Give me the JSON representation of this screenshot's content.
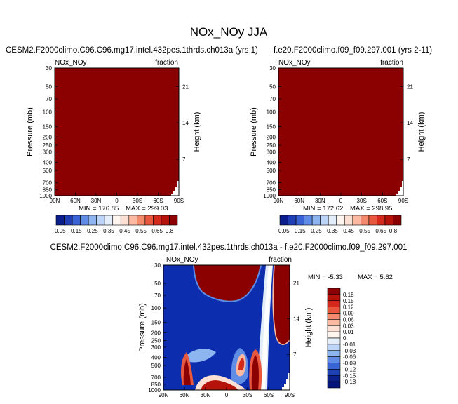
{
  "page_title": "NOx_NOy JJA",
  "chart_data": [
    {
      "type": "heatmap",
      "title": "CESM2.F2000climo.C96.C96.mg17.intel.432pes.1thrds.ch013a (yrs 1)",
      "left_label": "NOx_NOy",
      "right_label": "fraction",
      "ylabel": "Pressure (mb)",
      "ylabel_right": "Height (km)",
      "x_ticks": [
        "90N",
        "60N",
        "30N",
        "0",
        "30S",
        "60S",
        "90S"
      ],
      "pressure_ticks": [
        "30",
        "50",
        "70",
        "100",
        "150",
        "200",
        "250",
        "300",
        "400",
        "500",
        "700",
        "850",
        "1000"
      ],
      "height_ticks": [
        "21",
        "14",
        "7"
      ],
      "min_label": "MIN = 176.85",
      "max_label": "MAX = 299.03",
      "fill_color": "#8b0000"
    },
    {
      "type": "heatmap",
      "title": "f.e20.F2000climo.f09_f09.297.001 (yrs 2-11)",
      "left_label": "NOx_NOy",
      "right_label": "fraction",
      "ylabel": "Pressure (mb)",
      "ylabel_right": "Height (km)",
      "x_ticks": [
        "90N",
        "60N",
        "30N",
        "0",
        "30S",
        "60S",
        "90S"
      ],
      "pressure_ticks": [
        "30",
        "50",
        "70",
        "100",
        "150",
        "200",
        "250",
        "300",
        "400",
        "500",
        "700",
        "850",
        "1000"
      ],
      "height_ticks": [
        "21",
        "14",
        "7"
      ],
      "min_label": "MIN = 172.62",
      "max_label": "MAX = 298.95",
      "fill_color": "#8b0000"
    },
    {
      "type": "heatmap",
      "title": "CESM2.F2000climo.C96.C96.mg17.intel.432pes.1thrds.ch013a - f.e20.F2000climo.f09_f09.297.001",
      "left_label": "NOx_NOy",
      "right_label": "fraction",
      "ylabel": "Pressure (mb)",
      "ylabel_right": "Height (km)",
      "x_ticks": [
        "90N",
        "60N",
        "30N",
        "0",
        "30S",
        "60S",
        "90S"
      ],
      "pressure_ticks": [
        "30",
        "50",
        "70",
        "100",
        "150",
        "200",
        "250",
        "300",
        "400",
        "500",
        "700",
        "850",
        "1000"
      ],
      "height_ticks": [
        "21",
        "14",
        "7"
      ],
      "min_label": "MIN = -5.33",
      "max_label": "MAX =  5.62",
      "background_color": "#0a2aa8",
      "high_color": "#8b0000"
    }
  ],
  "colorbar_main": {
    "labels": [
      "0.05",
      "0.15",
      "0.25",
      "0.35",
      "0.45",
      "0.55",
      "0.65",
      "0.8"
    ],
    "colors": [
      "#0b1f8c",
      "#1f3fb5",
      "#3a63d6",
      "#5f8de6",
      "#8db5f0",
      "#bcd4f7",
      "#e4eefb",
      "#fff5ef",
      "#fde0d3",
      "#fbb9a1",
      "#f48a6c",
      "#e8583f",
      "#d42a1c",
      "#b5120a",
      "#8b0000"
    ]
  },
  "colorbar_diff": {
    "labels": [
      "0.18",
      "0.15",
      "0.12",
      "0.09",
      "0.06",
      "0.03",
      "0.01",
      "0",
      "-0.01",
      "-0.03",
      "-0.06",
      "-0.09",
      "-0.12",
      "-0.15",
      "-0.18"
    ],
    "colors": [
      "#8b0000",
      "#b5120a",
      "#d42a1c",
      "#e8583f",
      "#f48a6c",
      "#fbb9a1",
      "#fde0d3",
      "#fff5ef",
      "#e4eefb",
      "#bcd4f7",
      "#8db5f0",
      "#5f8de6",
      "#3a63d6",
      "#1f3fb5",
      "#0b1f8c",
      "#05147a"
    ]
  }
}
